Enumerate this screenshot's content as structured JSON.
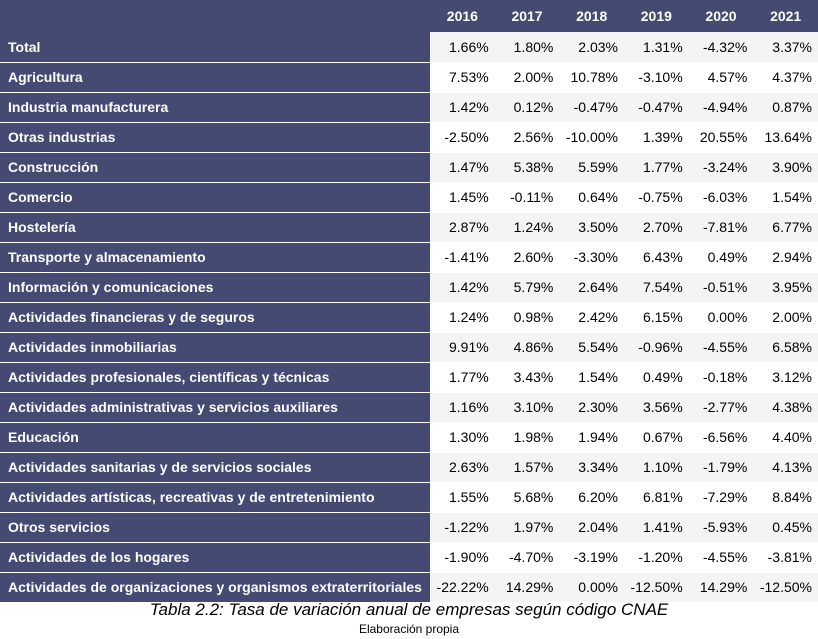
{
  "table": {
    "columns": [
      "2016",
      "2017",
      "2018",
      "2019",
      "2020",
      "2021"
    ],
    "rows": [
      {
        "label": "Total",
        "values": [
          "1.66%",
          "1.80%",
          "2.03%",
          "1.31%",
          "-4.32%",
          "3.37%"
        ]
      },
      {
        "label": "Agricultura",
        "values": [
          "7.53%",
          "2.00%",
          "10.78%",
          "-3.10%",
          "4.57%",
          "4.37%"
        ]
      },
      {
        "label": "Industria manufacturera",
        "values": [
          "1.42%",
          "0.12%",
          "-0.47%",
          "-0.47%",
          "-4.94%",
          "0.87%"
        ]
      },
      {
        "label": "Otras industrias",
        "values": [
          "-2.50%",
          "2.56%",
          "-10.00%",
          "1.39%",
          "20.55%",
          "13.64%"
        ]
      },
      {
        "label": "Construcción",
        "values": [
          "1.47%",
          "5.38%",
          "5.59%",
          "1.77%",
          "-3.24%",
          "3.90%"
        ]
      },
      {
        "label": "Comercio",
        "values": [
          "1.45%",
          "-0.11%",
          "0.64%",
          "-0.75%",
          "-6.03%",
          "1.54%"
        ]
      },
      {
        "label": "Hostelería",
        "values": [
          "2.87%",
          "1.24%",
          "3.50%",
          "2.70%",
          "-7.81%",
          "6.77%"
        ]
      },
      {
        "label": "Transporte y almacenamiento",
        "values": [
          "-1.41%",
          "2.60%",
          "-3.30%",
          "6.43%",
          "0.49%",
          "2.94%"
        ]
      },
      {
        "label": "Información y comunicaciones",
        "values": [
          "1.42%",
          "5.79%",
          "2.64%",
          "7.54%",
          "-0.51%",
          "3.95%"
        ]
      },
      {
        "label": "Actividades financieras y de seguros",
        "values": [
          "1.24%",
          "0.98%",
          "2.42%",
          "6.15%",
          "0.00%",
          "2.00%"
        ]
      },
      {
        "label": "Actividades inmobiliarias",
        "values": [
          "9.91%",
          "4.86%",
          "5.54%",
          "-0.96%",
          "-4.55%",
          "6.58%"
        ]
      },
      {
        "label": "Actividades profesionales, científicas y técnicas",
        "values": [
          "1.77%",
          "3.43%",
          "1.54%",
          "0.49%",
          "-0.18%",
          "3.12%"
        ]
      },
      {
        "label": "Actividades administrativas y servicios auxiliares",
        "values": [
          "1.16%",
          "3.10%",
          "2.30%",
          "3.56%",
          "-2.77%",
          "4.38%"
        ]
      },
      {
        "label": "Educación",
        "values": [
          "1.30%",
          "1.98%",
          "1.94%",
          "0.67%",
          "-6.56%",
          "4.40%"
        ]
      },
      {
        "label": "Actividades sanitarias y de servicios sociales",
        "values": [
          "2.63%",
          "1.57%",
          "3.34%",
          "1.10%",
          "-1.79%",
          "4.13%"
        ]
      },
      {
        "label": "Actividades artísticas, recreativas y de entretenimiento",
        "values": [
          "1.55%",
          "5.68%",
          "6.20%",
          "6.81%",
          "-7.29%",
          "8.84%"
        ]
      },
      {
        "label": "Otros servicios",
        "values": [
          "-1.22%",
          "1.97%",
          "2.04%",
          "1.41%",
          "-5.93%",
          "0.45%"
        ]
      },
      {
        "label": "Actividades de los hogares",
        "values": [
          "-1.90%",
          "-4.70%",
          "-3.19%",
          "-1.20%",
          "-4.55%",
          "-3.81%"
        ]
      },
      {
        "label": "Actividades de organizaciones y organismos extraterritoriales",
        "values": [
          "-22.22%",
          "14.29%",
          "0.00%",
          "-12.50%",
          "14.29%",
          "-12.50%"
        ]
      }
    ]
  },
  "caption": "Tabla 2.2: Tasa de variación anual de empresas según código CNAE",
  "source": "Elaboración propia",
  "colors": {
    "header_bg": "#454a73",
    "header_text": "#ffffff",
    "stripe": "#f4f4f4"
  }
}
